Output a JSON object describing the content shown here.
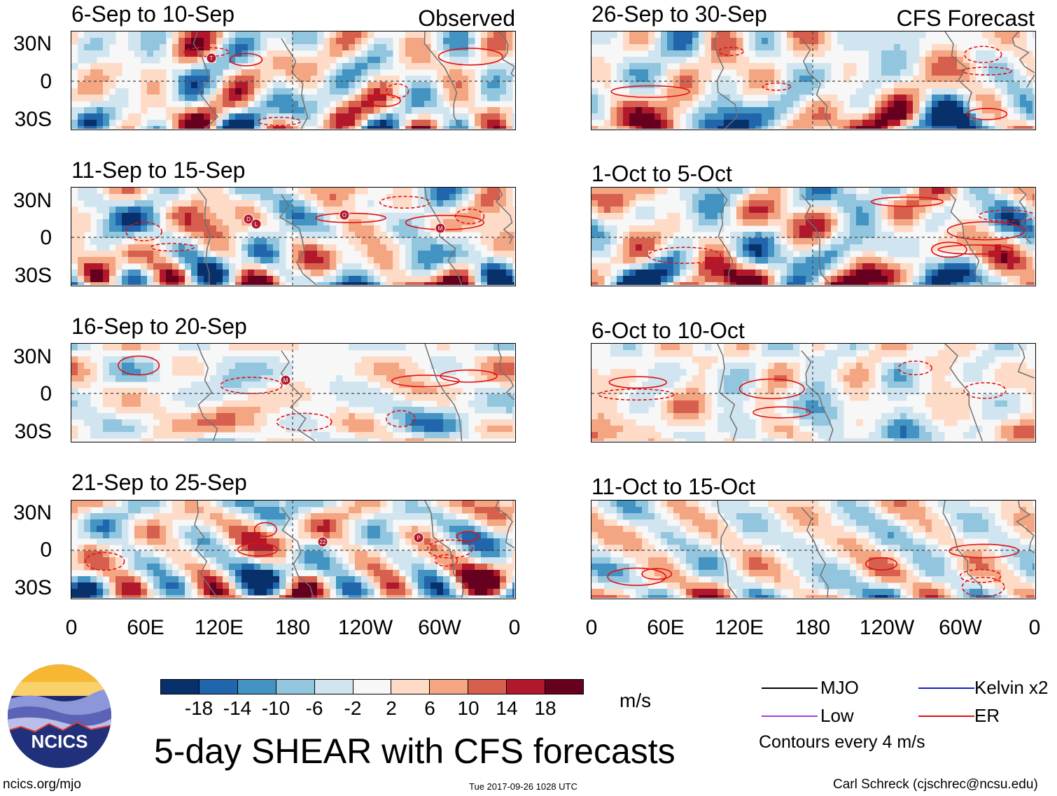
{
  "chart_data": {
    "type": "heatmap",
    "title": "5-day SHEAR with CFS forecasts",
    "units": "m/s",
    "observed_label": "Observed",
    "forecast_label": "CFS Forecast",
    "lat_ticks": [
      "30N",
      "0",
      "30S"
    ],
    "lon_ticks": [
      "0",
      "60E",
      "120E",
      "180",
      "120W",
      "60W",
      "0"
    ],
    "panels": [
      {
        "period": "6-Sep to 10-Sep",
        "kind": "observed",
        "storm_markers": [
          "T"
        ]
      },
      {
        "period": "11-Sep to 15-Sep",
        "kind": "observed",
        "storm_markers": [
          "D",
          "O",
          "M",
          "L"
        ]
      },
      {
        "period": "16-Sep to 20-Sep",
        "kind": "observed",
        "storm_markers": [
          "M"
        ]
      },
      {
        "period": "21-Sep to 25-Sep",
        "kind": "observed",
        "storm_markers": [
          "22",
          "P"
        ]
      },
      {
        "period": "26-Sep to 30-Sep",
        "kind": "forecast",
        "storm_markers": []
      },
      {
        "period": "1-Oct to 5-Oct",
        "kind": "forecast",
        "storm_markers": []
      },
      {
        "period": "6-Oct to 10-Oct",
        "kind": "forecast",
        "storm_markers": []
      },
      {
        "period": "11-Oct to 15-Oct",
        "kind": "forecast",
        "storm_markers": []
      }
    ],
    "colorbar": {
      "ticks": [
        "-18",
        "-14",
        "-10",
        "-6",
        "-2",
        "2",
        "6",
        "10",
        "14",
        "18"
      ],
      "colors": [
        "#08306b",
        "#2166ac",
        "#4393c3",
        "#92c5de",
        "#d1e5f0",
        "#f7f7f7",
        "#fddbc7",
        "#f4a582",
        "#d6604d",
        "#b2182b",
        "#67001f"
      ]
    },
    "legend": {
      "items": [
        {
          "label": "MJO",
          "color": "#000000"
        },
        {
          "label": "Kelvin x2",
          "color": "#1020c8"
        },
        {
          "label": "Low",
          "color": "#a040e0"
        },
        {
          "label": "ER",
          "color": "#e01010"
        }
      ],
      "note": "Contours every 4 m/s"
    }
  },
  "logo": {
    "text": "NCICS"
  },
  "footer": {
    "url": "ncics.org/mjo",
    "timestamp": "Tue 2017-09-26 1028 UTC",
    "author": "Carl Schreck (cjschrec@ncsu.edu)"
  }
}
